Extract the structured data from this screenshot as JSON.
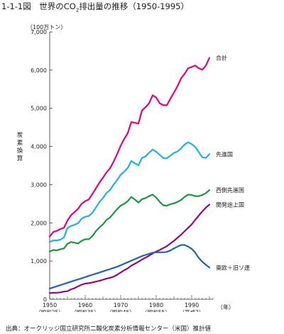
{
  "header": {
    "title_prefix": "1-1-1図　世界のCO",
    "title_sub": "2",
    "title_suffix": "排出量の推移（1950-1995）"
  },
  "footer": {
    "source": "出典：オークリッジ国立研究所二酸化炭素分析情報センター（米国）推計値"
  },
  "chart_data": {
    "type": "line",
    "title": "世界のCO2排出量の推移（1950-1995）",
    "ylabel": "炭素換算",
    "yunit": "（100万トン）",
    "xunit": "（年）",
    "ylim": [
      0,
      7000
    ],
    "xlim": [
      1950,
      1996
    ],
    "yticks": [
      0,
      1000,
      2000,
      3000,
      4000,
      5000,
      6000,
      7000
    ],
    "ytick_labels": [
      "0",
      "1,000",
      "2,000",
      "3,000",
      "4,000",
      "5,000",
      "6,000",
      "7,000"
    ],
    "xticks": [
      {
        "year": 1950,
        "label": "1950",
        "sublabel": "（昭和25）"
      },
      {
        "year": 1960,
        "label": "1960",
        "sublabel": "（昭和35）"
      },
      {
        "year": 1970,
        "label": "1970",
        "sublabel": "（昭和45）"
      },
      {
        "year": 1980,
        "label": "1980",
        "sublabel": "（昭和55）"
      },
      {
        "year": 1990,
        "label": "1990",
        "sublabel": "（平成2）"
      }
    ],
    "grid": false,
    "x": [
      1950,
      1951,
      1952,
      1953,
      1954,
      1955,
      1956,
      1957,
      1958,
      1959,
      1960,
      1961,
      1962,
      1963,
      1964,
      1965,
      1966,
      1967,
      1968,
      1969,
      1970,
      1971,
      1972,
      1973,
      1974,
      1975,
      1976,
      1977,
      1978,
      1979,
      1980,
      1981,
      1982,
      1983,
      1984,
      1985,
      1986,
      1987,
      1988,
      1989,
      1990,
      1991,
      1992,
      1993,
      1994,
      1995
    ],
    "series": [
      {
        "name": "合計",
        "color": "#e6007e",
        "values": [
          1640,
          1760,
          1790,
          1840,
          1870,
          2060,
          2200,
          2280,
          2370,
          2500,
          2570,
          2610,
          2750,
          2900,
          3050,
          3180,
          3320,
          3430,
          3600,
          3800,
          4020,
          4200,
          4350,
          4640,
          4620,
          4600,
          4940,
          5030,
          5130,
          5340,
          5280,
          5130,
          5080,
          5080,
          5250,
          5410,
          5580,
          5780,
          5900,
          6050,
          6080,
          6120,
          6050,
          6010,
          6120,
          6320
        ]
      },
      {
        "name": "先進国",
        "color": "#1fb0e6",
        "values": [
          1500,
          1540,
          1540,
          1560,
          1620,
          1860,
          1920,
          1950,
          1990,
          2110,
          2160,
          2180,
          2260,
          2400,
          2540,
          2650,
          2780,
          2860,
          3000,
          3120,
          3260,
          3340,
          3440,
          3620,
          3560,
          3510,
          3700,
          3740,
          3840,
          3920,
          3860,
          3780,
          3700,
          3690,
          3760,
          3830,
          3870,
          3950,
          4050,
          4110,
          4060,
          3990,
          3850,
          3720,
          3700,
          3800
        ]
      },
      {
        "name": "西側先進国",
        "color": "#1a9641",
        "values": [
          1250,
          1290,
          1280,
          1310,
          1330,
          1450,
          1500,
          1480,
          1460,
          1530,
          1570,
          1570,
          1650,
          1780,
          1880,
          1960,
          2080,
          2140,
          2250,
          2360,
          2450,
          2500,
          2570,
          2680,
          2610,
          2530,
          2620,
          2650,
          2700,
          2740,
          2660,
          2550,
          2460,
          2450,
          2490,
          2510,
          2550,
          2600,
          2680,
          2740,
          2730,
          2700,
          2700,
          2730,
          2780,
          2860
        ]
      },
      {
        "name": "開発途上国",
        "color": "#920783",
        "values": [
          160,
          170,
          170,
          180,
          200,
          210,
          260,
          290,
          340,
          380,
          410,
          420,
          440,
          460,
          480,
          510,
          540,
          560,
          590,
          640,
          700,
          760,
          810,
          880,
          930,
          980,
          1040,
          1090,
          1140,
          1200,
          1250,
          1290,
          1340,
          1390,
          1460,
          1530,
          1610,
          1690,
          1780,
          1870,
          1960,
          2080,
          2190,
          2300,
          2400,
          2480
        ]
      },
      {
        "name": "東欧＋旧ソ連",
        "color": "#1a66b0",
        "values": [
          280,
          310,
          340,
          370,
          400,
          430,
          460,
          490,
          520,
          550,
          580,
          610,
          640,
          670,
          700,
          730,
          760,
          790,
          820,
          850,
          890,
          930,
          970,
          1010,
          1050,
          1090,
          1130,
          1160,
          1190,
          1220,
          1230,
          1230,
          1230,
          1240,
          1280,
          1330,
          1380,
          1420,
          1420,
          1380,
          1320,
          1220,
          1080,
          980,
          900,
          830
        ]
      }
    ]
  }
}
